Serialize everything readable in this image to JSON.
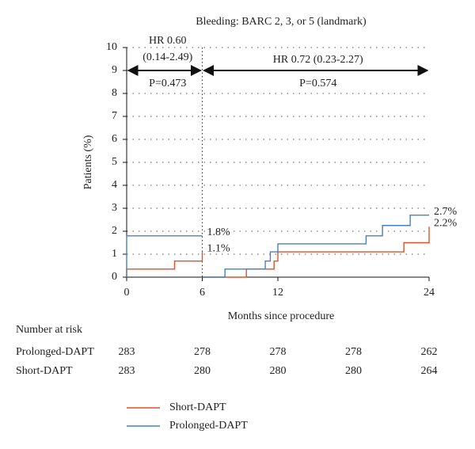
{
  "chart_data": {
    "type": "step",
    "title": "Bleeding: BARC 2, 3, or 5 (landmark)",
    "x_label": "Months since procedure",
    "y_label": "Patients (%)",
    "xlim": [
      0,
      24
    ],
    "xticks": [
      0,
      6,
      12,
      24
    ],
    "ylim": [
      0,
      10
    ],
    "yticks": [
      0,
      1,
      2,
      3,
      4,
      5,
      6,
      7,
      8,
      9,
      10
    ],
    "grid": true,
    "landmark": 6,
    "series": [
      {
        "name": "Short-DAPT",
        "color": "#d9542b",
        "x": [
          0,
          0,
          3.8,
          6,
          null,
          6,
          9.5,
          11.7,
          12,
          22,
          24
        ],
        "values": [
          0,
          0.35,
          0.7,
          1.1,
          null,
          0,
          0.35,
          0.7,
          1.1,
          1.5,
          2.2
        ]
      },
      {
        "name": "Prolonged-DAPT",
        "color": "#4a7fc1",
        "x": [
          0,
          0,
          6,
          null,
          6,
          7.8,
          11,
          11.4,
          12,
          19,
          20.3,
          22.5,
          24
        ],
        "values": [
          0,
          1.8,
          1.8,
          null,
          0,
          0.35,
          0.7,
          1.1,
          1.45,
          1.8,
          2.25,
          2.7,
          2.7
        ]
      }
    ],
    "end_labels": [
      {
        "series": 0,
        "x": 6,
        "value": 1.1,
        "label": "1.1%"
      },
      {
        "series": 1,
        "x": 6,
        "value": 1.8,
        "label": "1.8%"
      },
      {
        "series": 0,
        "x": 24,
        "value": 2.2,
        "label": "2.2%"
      },
      {
        "series": 1,
        "x": 24,
        "value": 2.7,
        "label": "2.7%"
      }
    ],
    "annotations": {
      "hr1": "HR 0.60",
      "ci1": "(0.14-2.49)",
      "p1": "P=0.473",
      "hr2": "HR 0.72 (0.23-2.27)",
      "p2": "P=0.574"
    },
    "risk_table": {
      "title": "Number at risk",
      "rows": [
        {
          "name": "Prolonged-DAPT",
          "values": [
            283,
            278,
            278,
            278,
            262
          ]
        },
        {
          "name": "Short-DAPT",
          "values": [
            283,
            280,
            280,
            280,
            264
          ]
        }
      ]
    },
    "legend_order": [
      0,
      1
    ]
  }
}
